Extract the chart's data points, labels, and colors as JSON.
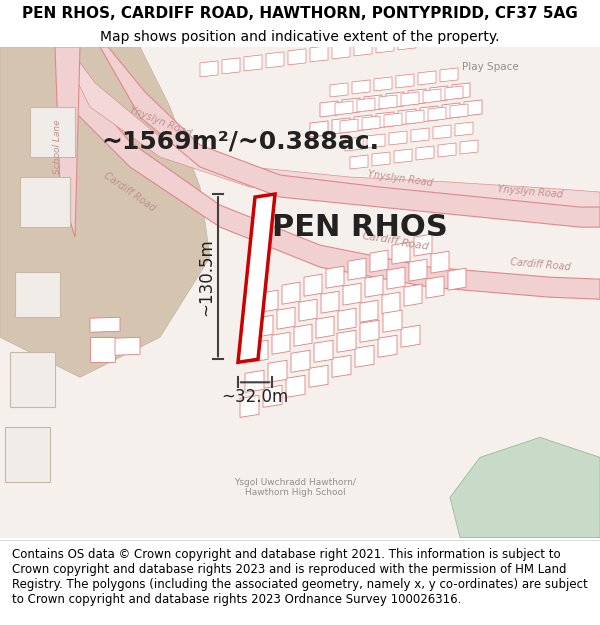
{
  "title_line1": "PEN RHOS, CARDIFF ROAD, HAWTHORN, PONTYPRIDD, CF37 5AG",
  "title_line2": "Map shows position and indicative extent of the property.",
  "property_label": "PEN RHOS",
  "area_label": "~1569m²/~0.388ac.",
  "dim_height": "~130.5m",
  "dim_width": "~32.0m",
  "footer_text": "Contains OS data © Crown copyright and database right 2021. This information is subject to Crown copyright and database rights 2023 and is reproduced with the permission of HM Land Registry. The polygons (including the associated geometry, namely x, y co-ordinates) are subject to Crown copyright and database rights 2023 Ordnance Survey 100026316.",
  "map_bg": "#f5f0eb",
  "road_color": "#f0c8c8",
  "road_outline": "#e08080",
  "highlight_color": "#cc0000",
  "building_fill": "#ffffff",
  "building_outline": "#e08080",
  "green_area": "#c8dfc8",
  "tan_area": "#d4c4b0",
  "label_color": "#c0a0a0",
  "dim_color": "#404040",
  "title_fontsize": 11,
  "subtitle_fontsize": 10,
  "property_fontsize": 22,
  "area_fontsize": 18,
  "dim_fontsize": 12,
  "footer_fontsize": 8.5
}
